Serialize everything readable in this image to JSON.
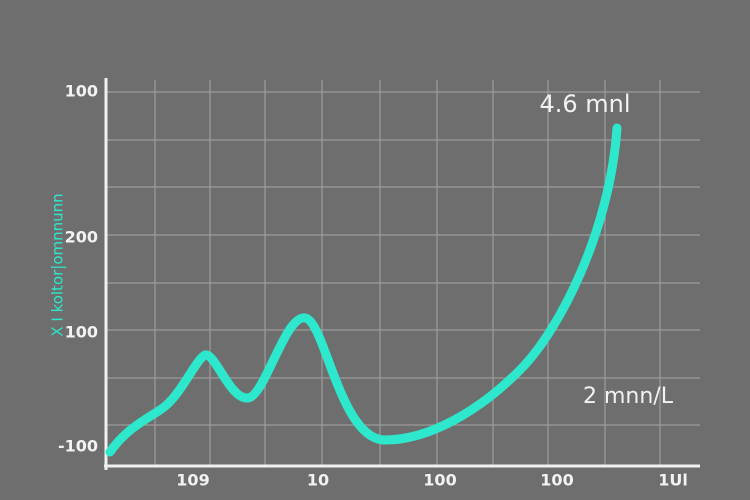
{
  "y_axis_title": "X I koltor|omnnunn",
  "y_axis_labels": [
    "100",
    "200",
    "100",
    "-100"
  ],
  "x_axis_labels": [
    "109",
    "10",
    "100",
    "100",
    "1Ul"
  ],
  "annotations": [
    "4.6 mnl",
    "2 mnn/L"
  ]
}
